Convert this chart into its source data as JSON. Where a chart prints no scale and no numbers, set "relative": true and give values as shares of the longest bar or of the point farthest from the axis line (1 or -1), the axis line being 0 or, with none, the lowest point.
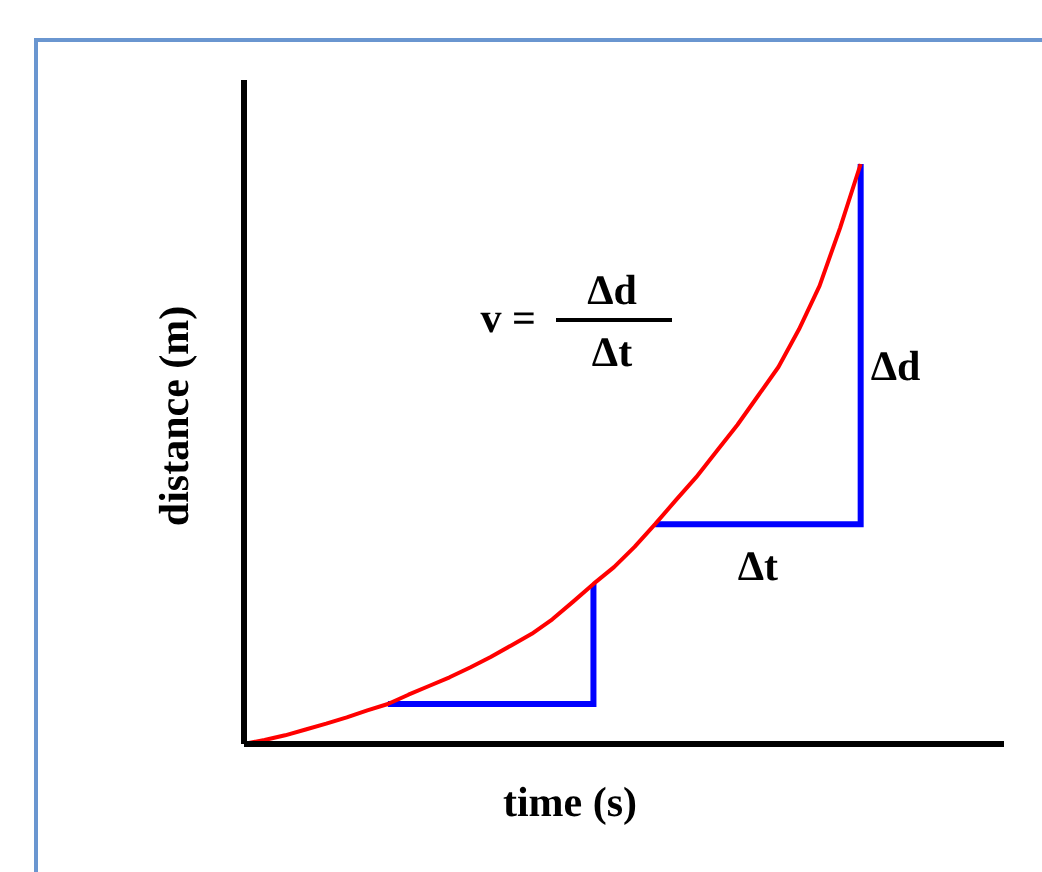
{
  "chart_data": {
    "type": "line",
    "relative": true,
    "xlabel": "time (s)",
    "ylabel": "distance (m)",
    "annotations": [
      "v =",
      "Δd",
      "Δt",
      "Δd",
      "Δt"
    ],
    "categories": [
      null,
      null,
      null,
      null,
      null,
      null,
      null,
      null,
      null,
      null,
      null,
      null,
      null,
      null,
      null,
      null,
      null,
      null,
      null,
      null,
      null,
      null,
      null,
      null,
      null,
      null,
      null,
      null,
      null,
      null,
      null,
      null,
      null,
      null,
      null,
      null,
      null
    ],
    "series": [
      {
        "color": "#ff0000",
        "values": [
          0,
          0.007,
          0.015,
          0.025,
          0.035,
          0.046,
          0.058,
          0.069,
          0.085,
          0.1,
          0.115,
          0.132,
          0.15,
          0.17,
          0.19,
          0.215,
          0.245,
          0.276,
          0.305,
          0.34,
          0.379,
          0.42,
          0.46,
          0.505,
          0.55,
          0.6,
          0.65,
          0.715,
          0.79,
          0.89,
          1,
          null,
          null,
          null,
          null,
          null,
          null
        ]
      }
    ]
  }
}
